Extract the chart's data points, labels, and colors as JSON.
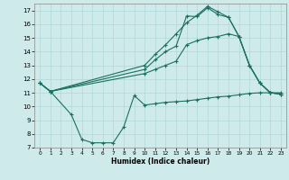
{
  "xlabel": "Humidex (Indice chaleur)",
  "bg_color": "#ceeaea",
  "grid_color": "#b0d8d8",
  "line_color": "#1a7060",
  "xlim": [
    -0.5,
    23.5
  ],
  "ylim": [
    7,
    17.5
  ],
  "yticks": [
    7,
    8,
    9,
    10,
    11,
    12,
    13,
    14,
    15,
    16,
    17
  ],
  "xticks": [
    0,
    1,
    2,
    3,
    4,
    5,
    6,
    7,
    8,
    9,
    10,
    11,
    12,
    13,
    14,
    15,
    16,
    17,
    18,
    19,
    20,
    21,
    22,
    23
  ],
  "line1_x": [
    0,
    1,
    3,
    4,
    5,
    6,
    7,
    8,
    9,
    10,
    11,
    12,
    13,
    14,
    15,
    16,
    17,
    18,
    19,
    20,
    21,
    22,
    23
  ],
  "line1_y": [
    11.7,
    11.1,
    9.4,
    7.6,
    7.35,
    7.35,
    7.35,
    8.5,
    10.8,
    10.1,
    10.2,
    10.3,
    10.35,
    10.4,
    10.5,
    10.6,
    10.7,
    10.75,
    10.85,
    10.95,
    11.0,
    11.0,
    11.0
  ],
  "line2_x": [
    0,
    1,
    10,
    11,
    12,
    13,
    14,
    15,
    16,
    17,
    18,
    19,
    20,
    21,
    22,
    23
  ],
  "line2_y": [
    11.7,
    11.1,
    13.0,
    13.8,
    14.5,
    15.3,
    16.1,
    16.65,
    17.3,
    16.9,
    16.5,
    15.1,
    13.0,
    11.7,
    11.0,
    10.9
  ],
  "line3_x": [
    0,
    1,
    10,
    11,
    12,
    13,
    14,
    15,
    16,
    17,
    18,
    19,
    20,
    21,
    22,
    23
  ],
  "line3_y": [
    11.7,
    11.1,
    12.7,
    13.4,
    14.0,
    14.4,
    16.6,
    16.55,
    17.2,
    16.7,
    16.5,
    15.1,
    13.0,
    11.7,
    11.0,
    10.9
  ],
  "line4_x": [
    0,
    1,
    10,
    11,
    12,
    13,
    14,
    15,
    16,
    17,
    18,
    19,
    20,
    21,
    22,
    23
  ],
  "line4_y": [
    11.7,
    11.1,
    12.4,
    12.7,
    13.0,
    13.3,
    14.5,
    14.8,
    15.0,
    15.1,
    15.3,
    15.1,
    13.0,
    11.7,
    11.0,
    10.9
  ]
}
